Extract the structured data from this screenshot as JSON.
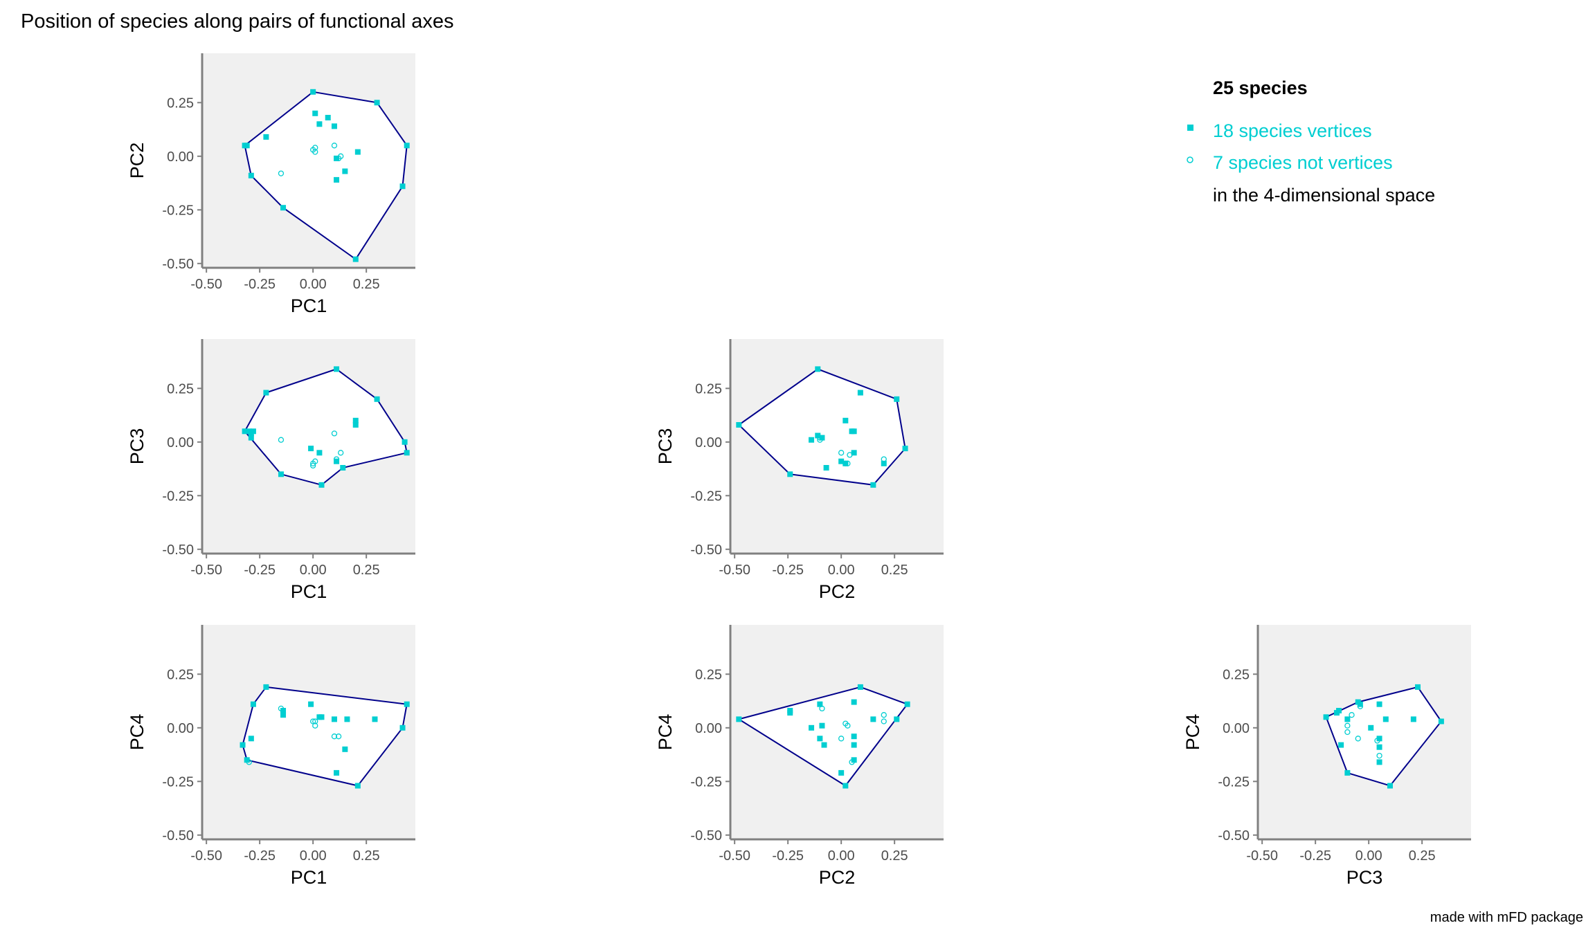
{
  "title": "Position of species along pairs of functional axes",
  "caption": "made with mFD package",
  "colors": {
    "panel_bg": "#f0f0f0",
    "hull": "#00008b",
    "points": "#00ced1",
    "axis": "#808080",
    "text": "#000000",
    "tick_text": "#4d4d4d"
  },
  "legend": {
    "heading": "25 species",
    "vertices_label": "18 species vertices",
    "nonvertices_label": "7 species not vertices",
    "note": "in the 4-dimensional space",
    "vertices_icon": "filled-square",
    "nonvertices_icon": "open-circle"
  },
  "chart_data": [
    {
      "type": "scatter",
      "xlabel": "PC1",
      "ylabel": "PC2",
      "xlim": [
        -0.52,
        0.48
      ],
      "ylim": [
        -0.52,
        0.48
      ],
      "xticks": [
        "-0.50",
        "-0.25",
        "0.00",
        "0.25"
      ],
      "yticks": [
        "-0.50",
        "-0.25",
        "0.00",
        "0.25"
      ],
      "grid": false,
      "vertices": [
        [
          -0.32,
          0.05
        ],
        [
          -0.31,
          0.05
        ],
        [
          -0.22,
          0.09
        ],
        [
          -0.29,
          -0.09
        ],
        [
          -0.14,
          -0.24
        ],
        [
          0.0,
          0.3
        ],
        [
          0.1,
          0.14
        ],
        [
          0.3,
          0.25
        ],
        [
          0.44,
          0.05
        ],
        [
          0.42,
          -0.14
        ],
        [
          0.2,
          -0.48
        ],
        [
          0.01,
          0.2
        ],
        [
          0.07,
          0.18
        ],
        [
          0.21,
          0.02
        ],
        [
          0.11,
          -0.01
        ],
        [
          0.15,
          -0.07
        ],
        [
          0.11,
          -0.11
        ],
        [
          0.03,
          0.15
        ]
      ],
      "non_vertices": [
        [
          0.0,
          0.03
        ],
        [
          0.01,
          0.04
        ],
        [
          0.1,
          0.05
        ],
        [
          0.12,
          -0.01
        ],
        [
          -0.15,
          -0.08
        ],
        [
          0.13,
          0.0
        ],
        [
          0.01,
          0.02
        ]
      ],
      "hull": [
        [
          0.0,
          0.3
        ],
        [
          0.3,
          0.25
        ],
        [
          0.44,
          0.05
        ],
        [
          0.42,
          -0.14
        ],
        [
          0.2,
          -0.48
        ],
        [
          -0.14,
          -0.24
        ],
        [
          -0.29,
          -0.09
        ],
        [
          -0.32,
          0.05
        ]
      ]
    },
    {
      "type": "scatter",
      "xlabel": "PC1",
      "ylabel": "PC3",
      "xlim": [
        -0.52,
        0.48
      ],
      "ylim": [
        -0.52,
        0.48
      ],
      "xticks": [
        "-0.50",
        "-0.25",
        "0.00",
        "0.25"
      ],
      "yticks": [
        "-0.50",
        "-0.25",
        "0.00",
        "0.25"
      ],
      "grid": false,
      "vertices": [
        [
          -0.32,
          0.05
        ],
        [
          -0.3,
          0.05
        ],
        [
          -0.29,
          0.04
        ],
        [
          -0.28,
          0.05
        ],
        [
          -0.22,
          0.23
        ],
        [
          0.11,
          0.34
        ],
        [
          0.3,
          0.2
        ],
        [
          0.43,
          0.0
        ],
        [
          0.44,
          -0.05
        ],
        [
          0.14,
          -0.12
        ],
        [
          0.04,
          -0.2
        ],
        [
          -0.15,
          -0.15
        ],
        [
          0.2,
          0.1
        ],
        [
          0.2,
          0.08
        ],
        [
          0.11,
          -0.09
        ],
        [
          -0.01,
          -0.03
        ],
        [
          0.03,
          -0.05
        ],
        [
          -0.29,
          0.02
        ]
      ],
      "non_vertices": [
        [
          -0.15,
          0.01
        ],
        [
          0.1,
          0.04
        ],
        [
          0.13,
          -0.05
        ],
        [
          0.0,
          -0.1
        ],
        [
          0.01,
          -0.09
        ],
        [
          0.0,
          -0.11
        ],
        [
          0.11,
          -0.08
        ]
      ],
      "hull": [
        [
          -0.22,
          0.23
        ],
        [
          0.11,
          0.34
        ],
        [
          0.3,
          0.2
        ],
        [
          0.43,
          0.0
        ],
        [
          0.44,
          -0.05
        ],
        [
          0.14,
          -0.12
        ],
        [
          0.04,
          -0.2
        ],
        [
          -0.15,
          -0.15
        ],
        [
          -0.32,
          0.05
        ]
      ]
    },
    {
      "type": "scatter",
      "xlabel": "PC2",
      "ylabel": "PC3",
      "xlim": [
        -0.52,
        0.48
      ],
      "ylim": [
        -0.52,
        0.48
      ],
      "xticks": [
        "-0.50",
        "-0.25",
        "0.00",
        "0.25"
      ],
      "yticks": [
        "-0.50",
        "-0.25",
        "0.00",
        "0.25"
      ],
      "grid": false,
      "vertices": [
        [
          -0.48,
          0.08
        ],
        [
          -0.11,
          0.34
        ],
        [
          0.09,
          0.23
        ],
        [
          0.26,
          0.2
        ],
        [
          0.3,
          -0.03
        ],
        [
          0.15,
          -0.2
        ],
        [
          -0.24,
          -0.15
        ],
        [
          0.02,
          0.1
        ],
        [
          0.05,
          0.05
        ],
        [
          0.06,
          0.05
        ],
        [
          -0.14,
          0.01
        ],
        [
          -0.09,
          0.02
        ],
        [
          -0.07,
          -0.12
        ],
        [
          0.0,
          -0.09
        ],
        [
          0.2,
          -0.1
        ],
        [
          0.02,
          -0.1
        ],
        [
          -0.11,
          0.03
        ],
        [
          0.06,
          -0.05
        ]
      ],
      "non_vertices": [
        [
          -0.1,
          0.01
        ],
        [
          0.0,
          -0.05
        ],
        [
          0.02,
          -0.1
        ],
        [
          0.04,
          -0.06
        ],
        [
          0.2,
          -0.08
        ],
        [
          -0.1,
          0.02
        ],
        [
          0.03,
          -0.1
        ]
      ],
      "hull": [
        [
          -0.48,
          0.08
        ],
        [
          -0.11,
          0.34
        ],
        [
          0.26,
          0.2
        ],
        [
          0.3,
          -0.03
        ],
        [
          0.15,
          -0.2
        ],
        [
          -0.24,
          -0.15
        ]
      ]
    },
    {
      "type": "scatter",
      "xlabel": "PC1",
      "ylabel": "PC4",
      "xlim": [
        -0.52,
        0.48
      ],
      "ylim": [
        -0.52,
        0.48
      ],
      "xticks": [
        "-0.50",
        "-0.25",
        "0.00",
        "0.25"
      ],
      "yticks": [
        "-0.50",
        "-0.25",
        "0.00",
        "0.25"
      ],
      "grid": false,
      "vertices": [
        [
          -0.22,
          0.19
        ],
        [
          0.44,
          0.11
        ],
        [
          0.42,
          0.0
        ],
        [
          0.21,
          -0.27
        ],
        [
          -0.31,
          -0.15
        ],
        [
          -0.33,
          -0.08
        ],
        [
          -0.28,
          0.11
        ],
        [
          -0.29,
          -0.05
        ],
        [
          -0.14,
          0.06
        ],
        [
          -0.14,
          0.08
        ],
        [
          -0.01,
          0.11
        ],
        [
          0.03,
          0.05
        ],
        [
          0.1,
          0.04
        ],
        [
          0.16,
          0.04
        ],
        [
          0.29,
          0.04
        ],
        [
          0.11,
          -0.21
        ],
        [
          0.15,
          -0.1
        ],
        [
          0.04,
          0.05
        ]
      ],
      "non_vertices": [
        [
          -0.15,
          0.09
        ],
        [
          0.0,
          0.03
        ],
        [
          0.01,
          0.01
        ],
        [
          0.1,
          -0.04
        ],
        [
          0.12,
          -0.04
        ],
        [
          -0.3,
          -0.16
        ],
        [
          0.01,
          0.03
        ]
      ],
      "hull": [
        [
          -0.22,
          0.19
        ],
        [
          0.44,
          0.11
        ],
        [
          0.42,
          0.0
        ],
        [
          0.21,
          -0.27
        ],
        [
          -0.31,
          -0.15
        ],
        [
          -0.33,
          -0.08
        ],
        [
          -0.28,
          0.11
        ]
      ]
    },
    {
      "type": "scatter",
      "xlabel": "PC2",
      "ylabel": "PC4",
      "xlim": [
        -0.52,
        0.48
      ],
      "ylim": [
        -0.52,
        0.48
      ],
      "xticks": [
        "-0.50",
        "-0.25",
        "0.00",
        "0.25"
      ],
      "yticks": [
        "-0.50",
        "-0.25",
        "0.00",
        "0.25"
      ],
      "grid": false,
      "vertices": [
        [
          -0.48,
          0.04
        ],
        [
          0.09,
          0.19
        ],
        [
          0.31,
          0.11
        ],
        [
          0.02,
          -0.27
        ],
        [
          -0.24,
          0.07
        ],
        [
          -0.24,
          0.08
        ],
        [
          -0.1,
          0.11
        ],
        [
          -0.14,
          0.0
        ],
        [
          -0.1,
          -0.05
        ],
        [
          -0.08,
          -0.08
        ],
        [
          0.06,
          0.12
        ],
        [
          0.15,
          0.04
        ],
        [
          0.26,
          0.04
        ],
        [
          0.0,
          -0.21
        ],
        [
          -0.09,
          0.01
        ],
        [
          0.06,
          -0.04
        ],
        [
          0.06,
          -0.08
        ],
        [
          0.06,
          -0.15
        ]
      ],
      "non_vertices": [
        [
          -0.09,
          0.09
        ],
        [
          0.03,
          0.01
        ],
        [
          0.02,
          0.02
        ],
        [
          0.2,
          0.06
        ],
        [
          0.2,
          0.03
        ],
        [
          0.0,
          -0.05
        ],
        [
          0.05,
          -0.16
        ]
      ],
      "hull": [
        [
          -0.48,
          0.04
        ],
        [
          0.09,
          0.19
        ],
        [
          0.31,
          0.11
        ],
        [
          0.02,
          -0.27
        ]
      ]
    },
    {
      "type": "scatter",
      "xlabel": "PC3",
      "ylabel": "PC4",
      "xlim": [
        -0.52,
        0.48
      ],
      "ylim": [
        -0.52,
        0.48
      ],
      "xticks": [
        "-0.50",
        "-0.25",
        "0.00",
        "0.25"
      ],
      "yticks": [
        "-0.50",
        "-0.25",
        "0.00",
        "0.25"
      ],
      "grid": false,
      "vertices": [
        [
          -0.2,
          0.05
        ],
        [
          -0.15,
          0.07
        ],
        [
          -0.14,
          0.08
        ],
        [
          -0.05,
          0.12
        ],
        [
          -0.04,
          0.11
        ],
        [
          0.05,
          0.11
        ],
        [
          0.23,
          0.19
        ],
        [
          0.34,
          0.03
        ],
        [
          0.1,
          -0.27
        ],
        [
          -0.1,
          -0.21
        ],
        [
          -0.13,
          -0.08
        ],
        [
          0.01,
          0.0
        ],
        [
          0.08,
          0.04
        ],
        [
          0.21,
          0.04
        ],
        [
          0.05,
          -0.05
        ],
        [
          0.05,
          -0.09
        ],
        [
          0.05,
          -0.16
        ],
        [
          -0.1,
          0.04
        ]
      ],
      "non_vertices": [
        [
          -0.1,
          0.01
        ],
        [
          -0.05,
          -0.05
        ],
        [
          -0.1,
          -0.02
        ],
        [
          0.04,
          -0.06
        ],
        [
          0.05,
          -0.13
        ],
        [
          -0.08,
          0.06
        ],
        [
          -0.04,
          0.1
        ]
      ],
      "hull": [
        [
          -0.2,
          0.05
        ],
        [
          -0.05,
          0.12
        ],
        [
          0.23,
          0.19
        ],
        [
          0.34,
          0.03
        ],
        [
          0.1,
          -0.27
        ],
        [
          -0.1,
          -0.21
        ]
      ]
    }
  ]
}
